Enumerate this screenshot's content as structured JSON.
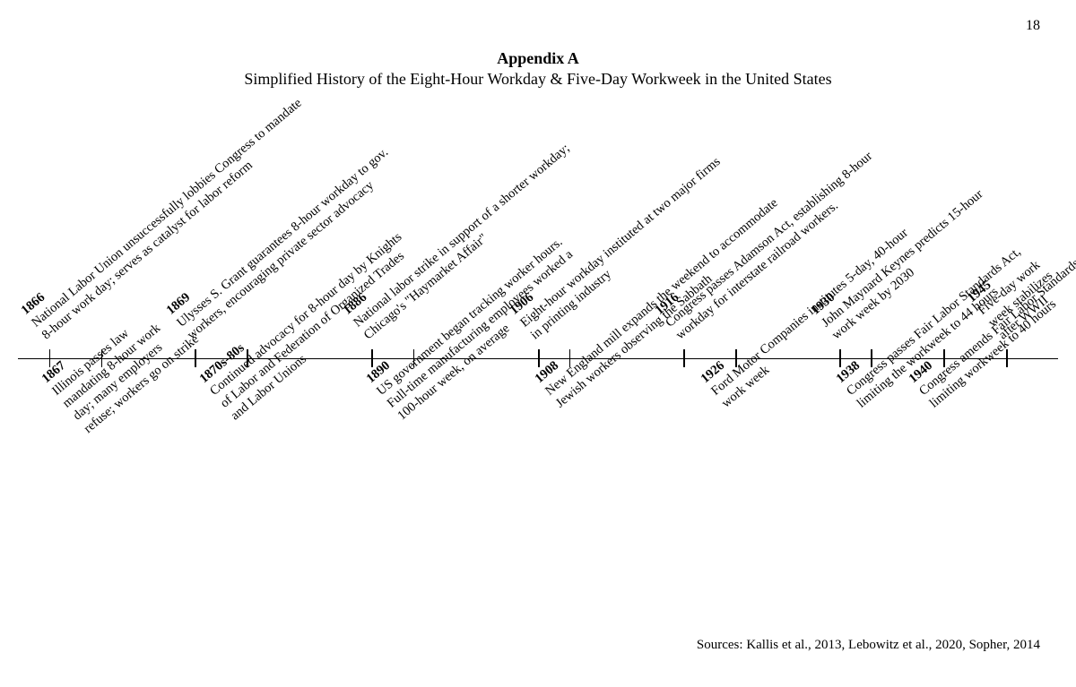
{
  "page_number": "18",
  "appendix_title": "Appendix A",
  "subtitle": "Simplified History of the Eight-Hour Workday & Five-Day Workweek in the United States",
  "sources": "Sources: Kallis et al., 2013, Lebowitz et al., 2020, Sopher, 2014",
  "timeline": {
    "line_color": "#000000",
    "text_color": "#000000",
    "background_color": "#ffffff",
    "rotation_deg": -40,
    "font_family": "Georgia, Times New Roman, serif",
    "year_font_weight": "bold",
    "desc_fontsize": 14.5,
    "events_top": [
      {
        "year": "1866",
        "x_pct": 3,
        "lines": [
          "National Labor Union unsuccessfully lobbies Congress to mandate",
          "8-hour work day; serves as catalyst for labor reform"
        ]
      },
      {
        "year": "1869",
        "x_pct": 17,
        "lines": [
          "Ulysses S. Grant guarantees 8-hour workday to gov.",
          "workers, encouraging private sector advocacy"
        ]
      },
      {
        "year": "1886",
        "x_pct": 34,
        "lines": [
          "National labor strike in support of a shorter workday;",
          "Chicago's \"Haymarket Affair\""
        ]
      },
      {
        "year": "1906",
        "x_pct": 50,
        "lines": [
          "Eight-hour workday instituted at two major firms",
          "in printing industry"
        ]
      },
      {
        "year": "1916",
        "x_pct": 64,
        "lines": [
          "Congress passes Adamson Act, establishing 8-hour",
          "workday for interstate railroad workers."
        ]
      },
      {
        "year": "1930",
        "x_pct": 79,
        "lines": [
          "John Maynard Keynes predicts 15-hour",
          "work week by 2030"
        ]
      },
      {
        "year": "1945",
        "x_pct": 95,
        "lines": [
          "Five-day work",
          "week stabilizes",
          "after WWII"
        ]
      }
    ],
    "events_bottom": [
      {
        "year": "1867",
        "x_pct": 8,
        "lines": [
          "Illinois passes law",
          "mandating 8-hour work",
          "day; many employers",
          "refuse; workers go on strike"
        ]
      },
      {
        "year": "1870s-80s",
        "x_pct": 22,
        "lines": [
          "Continued advocacy for 8-hour day by Knights",
          "of Labor and Federation of Organized Trades",
          "and Labor Unions"
        ]
      },
      {
        "year": "1890",
        "x_pct": 38,
        "lines": [
          "US government began tracking worker hours.",
          "Full-time manufacturing employees worked a",
          "100-hour week, on average"
        ]
      },
      {
        "year": "1908",
        "x_pct": 53,
        "lines": [
          "New England mill expands the weekend to accommodate",
          "Jewish workers observing the Sabbath"
        ]
      },
      {
        "year": "1926",
        "x_pct": 69,
        "lines": [
          "Ford Motor Companies institutes 5-day, 40-hour",
          "work week"
        ]
      },
      {
        "year": "1938",
        "x_pct": 82,
        "lines": [
          "Congress passes Fair Labor Standards Act,",
          "limiting the workweek to 44 hours"
        ]
      },
      {
        "year": "1940",
        "x_pct": 89,
        "lines": [
          "Congress amends Fair Labor Standards Act,",
          "limiting workweek to 40 hours"
        ]
      }
    ]
  }
}
